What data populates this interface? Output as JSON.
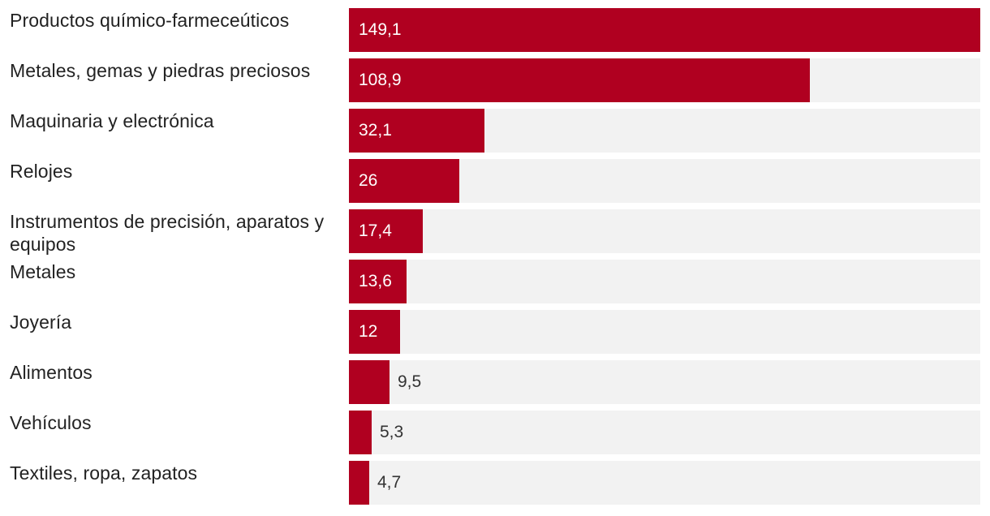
{
  "colors": {
    "bar": "#b00020",
    "track": "#f2f2f2",
    "label_inside": "#ffffff",
    "label_outside": "#333333",
    "category_text": "#222222"
  },
  "chart_data": {
    "type": "bar",
    "orientation": "horizontal",
    "title": "",
    "xlabel": "",
    "ylabel": "",
    "xlim": [
      0,
      149.1
    ],
    "grid": false,
    "legend": "none",
    "categories": [
      "Productos químico-farmeceúticos",
      "Metales, gemas y piedras preciosos",
      "Maquinaria y electrónica",
      "Relojes",
      "Instrumentos de precisión, aparatos y equipos",
      "Metales",
      "Joyería",
      "Alimentos",
      "Vehículos",
      "Textiles, ropa, zapatos"
    ],
    "values": [
      149.1,
      108.9,
      32.1,
      26,
      17.4,
      13.6,
      12,
      9.5,
      5.3,
      4.7
    ],
    "value_labels": [
      "149,1",
      "108,9",
      "32,1",
      "26",
      "17,4",
      "13,6",
      "12",
      "9,5",
      "5,3",
      "4,7"
    ]
  }
}
